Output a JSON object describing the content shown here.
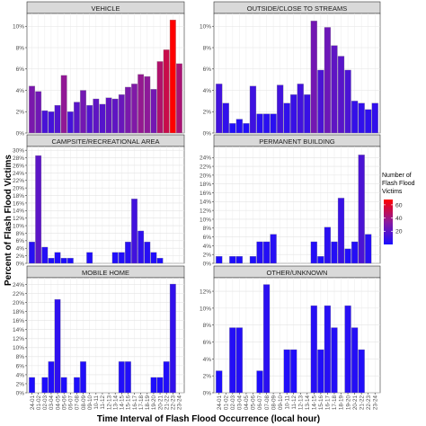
{
  "figure": {
    "ylabel": "Percent of Flash Flood Victims",
    "xlabel": "Time Interval of Flash Flood Occurrence (local hour)"
  },
  "legend": {
    "title_lines": [
      "Number of",
      "Flash Flood",
      "Victims"
    ],
    "ticks": [
      60,
      40,
      20
    ],
    "domain": [
      0,
      68
    ],
    "colors": {
      "low": "#1a0dff",
      "mid": "#8a1a9e",
      "high": "#ff0000"
    }
  },
  "x_categories": [
    "24-01",
    "01-02",
    "02-03",
    "03-04",
    "04-05",
    "05-06",
    "06-07",
    "07-08",
    "08-09",
    "09-10",
    "10-11",
    "11-12",
    "12-13",
    "13-14",
    "14-15",
    "15-16",
    "16-17",
    "17-18",
    "18-19",
    "19-20",
    "20-21",
    "21-22",
    "22-23",
    "23-24"
  ],
  "chart_data": [
    {
      "type": "bar",
      "title": "VEHICLE",
      "categories": [
        "24-01",
        "01-02",
        "02-03",
        "03-04",
        "04-05",
        "05-06",
        "06-07",
        "07-08",
        "08-09",
        "09-10",
        "10-11",
        "11-12",
        "12-13",
        "13-14",
        "14-15",
        "15-16",
        "16-17",
        "17-18",
        "18-19",
        "19-20",
        "20-21",
        "21-22",
        "22-23",
        "23-24"
      ],
      "values": [
        4.4,
        3.9,
        2.1,
        2.0,
        2.6,
        5.4,
        2.0,
        2.9,
        4.0,
        2.6,
        3.2,
        2.7,
        3.3,
        3.2,
        3.6,
        4.3,
        4.6,
        5.5,
        5.3,
        4.1,
        6.7,
        7.8,
        10.6,
        6.5
      ],
      "victims": [
        29,
        26,
        14,
        13,
        17,
        36,
        13,
        19,
        27,
        17,
        21,
        18,
        22,
        21,
        24,
        29,
        31,
        37,
        35,
        27,
        45,
        52,
        68,
        43
      ],
      "yticks": [
        0,
        2,
        4,
        6,
        8,
        10
      ],
      "ytick_labels": [
        "0%",
        "2%",
        "4%",
        "6%",
        "8%",
        "10%"
      ],
      "ylim": [
        0,
        11.2
      ]
    },
    {
      "type": "bar",
      "title": "OUTSIDE/CLOSE TO STREAMS",
      "categories": [
        "24-01",
        "01-02",
        "02-03",
        "03-04",
        "04-05",
        "05-06",
        "06-07",
        "07-08",
        "08-09",
        "09-10",
        "10-11",
        "11-12",
        "12-13",
        "13-14",
        "14-15",
        "15-16",
        "16-17",
        "17-18",
        "18-19",
        "19-20",
        "20-21",
        "21-22",
        "22-23",
        "23-24"
      ],
      "values": [
        4.6,
        2.8,
        0.9,
        1.3,
        0.9,
        4.4,
        1.8,
        1.8,
        1.8,
        4.5,
        2.8,
        3.6,
        4.6,
        3.6,
        10.5,
        5.9,
        9.9,
        8.2,
        7.2,
        5.9,
        3.0,
        2.8,
        2.2,
        2.8
      ],
      "victims": [
        12,
        7,
        2,
        3,
        2,
        11,
        5,
        5,
        5,
        12,
        7,
        9,
        12,
        9,
        27,
        15,
        25,
        21,
        19,
        15,
        8,
        7,
        6,
        7
      ],
      "yticks": [
        0,
        2,
        4,
        6,
        8,
        10
      ],
      "ytick_labels": [
        "0%",
        "2%",
        "4%",
        "6%",
        "8%",
        "10%"
      ],
      "ylim": [
        0,
        11.2
      ]
    },
    {
      "type": "bar",
      "title": "CAMPSITE/RECREATIONAL AREA",
      "categories": [
        "24-01",
        "01-02",
        "02-03",
        "03-04",
        "04-05",
        "05-06",
        "06-07",
        "07-08",
        "08-09",
        "09-10",
        "10-11",
        "11-12",
        "12-13",
        "13-14",
        "14-15",
        "15-16",
        "16-17",
        "17-18",
        "18-19",
        "19-20",
        "20-21",
        "21-22",
        "22-23",
        "23-24"
      ],
      "values": [
        5.7,
        28.6,
        4.3,
        1.4,
        2.9,
        1.4,
        1.4,
        0,
        0,
        2.9,
        0,
        0,
        0,
        2.9,
        2.9,
        5.7,
        17.1,
        8.6,
        5.7,
        2.9,
        1.4,
        0,
        0,
        0
      ],
      "victims": [
        4,
        20,
        3,
        1,
        2,
        1,
        1,
        0,
        0,
        2,
        0,
        0,
        0,
        2,
        2,
        4,
        12,
        6,
        4,
        2,
        1,
        0,
        0,
        0
      ],
      "yticks": [
        0,
        2,
        4,
        6,
        8,
        10,
        12,
        14,
        16,
        18,
        20,
        22,
        24,
        26,
        28,
        30
      ],
      "ytick_labels": [
        "0%",
        "2%",
        "4%",
        "6%",
        "8%",
        "10%",
        "12%",
        "14%",
        "16%",
        "18%",
        "20%",
        "22%",
        "24%",
        "26%",
        "28%",
        "30%"
      ],
      "ylim": [
        0,
        31
      ]
    },
    {
      "type": "bar",
      "title": "PERMANENT BUILDING",
      "categories": [
        "24-01",
        "01-02",
        "02-03",
        "03-04",
        "04-05",
        "05-06",
        "06-07",
        "07-08",
        "08-09",
        "09-10",
        "10-11",
        "11-12",
        "12-13",
        "13-14",
        "14-15",
        "15-16",
        "16-17",
        "17-18",
        "18-19",
        "19-20",
        "20-21",
        "21-22",
        "22-23",
        "23-24"
      ],
      "values": [
        1.6,
        0,
        1.6,
        1.6,
        0,
        1.6,
        4.9,
        4.9,
        6.6,
        0,
        0,
        0,
        0,
        0,
        4.9,
        1.6,
        8.2,
        4.9,
        14.8,
        3.3,
        4.9,
        24.6,
        6.6,
        0
      ],
      "victims": [
        1,
        0,
        1,
        1,
        0,
        1,
        3,
        3,
        4,
        0,
        0,
        0,
        0,
        0,
        3,
        1,
        5,
        3,
        9,
        2,
        3,
        15,
        4,
        0
      ],
      "yticks": [
        0,
        2,
        4,
        6,
        8,
        10,
        12,
        14,
        16,
        18,
        20,
        22,
        24
      ],
      "ytick_labels": [
        "0%",
        "2%",
        "4%",
        "6%",
        "8%",
        "10%",
        "12%",
        "14%",
        "16%",
        "18%",
        "20%",
        "22%",
        "24%"
      ],
      "ylim": [
        0,
        26.5
      ]
    },
    {
      "type": "bar",
      "title": "MOBILE HOME",
      "categories": [
        "24-01",
        "01-02",
        "02-03",
        "03-04",
        "04-05",
        "05-06",
        "06-07",
        "07-08",
        "08-09",
        "09-10",
        "10-11",
        "11-12",
        "12-13",
        "13-14",
        "14-15",
        "15-16",
        "16-17",
        "17-18",
        "18-19",
        "19-20",
        "20-21",
        "21-22",
        "22-23",
        "23-24"
      ],
      "values": [
        3.4,
        0,
        3.4,
        6.9,
        20.7,
        3.4,
        0,
        3.4,
        6.9,
        0,
        0,
        0,
        0,
        0,
        6.9,
        6.9,
        0,
        0,
        0,
        3.4,
        3.4,
        6.9,
        24.1,
        0
      ],
      "victims": [
        1,
        0,
        1,
        2,
        6,
        1,
        0,
        1,
        2,
        0,
        0,
        0,
        0,
        0,
        2,
        2,
        0,
        0,
        0,
        1,
        1,
        2,
        7,
        0
      ],
      "yticks": [
        0,
        2,
        4,
        6,
        8,
        10,
        12,
        14,
        16,
        18,
        20,
        22,
        24
      ],
      "ytick_labels": [
        "0%",
        "2%",
        "4%",
        "6%",
        "8%",
        "10%",
        "12%",
        "14%",
        "16%",
        "18%",
        "20%",
        "22%",
        "24%"
      ],
      "ylim": [
        0,
        25.5
      ]
    },
    {
      "type": "bar",
      "title": "OTHER/UNKNOWN",
      "categories": [
        "24-01",
        "01-02",
        "02-03",
        "03-04",
        "04-05",
        "05-06",
        "06-07",
        "07-08",
        "08-09",
        "09-10",
        "10-11",
        "11-12",
        "12-13",
        "13-14",
        "14-15",
        "15-16",
        "16-17",
        "17-18",
        "18-19",
        "19-20",
        "20-21",
        "21-22",
        "22-23",
        "23-24"
      ],
      "values": [
        2.6,
        0,
        7.7,
        7.7,
        0,
        0,
        2.6,
        12.8,
        0,
        0,
        5.1,
        5.1,
        0,
        0,
        10.3,
        5.1,
        10.3,
        7.7,
        0,
        10.3,
        7.7,
        5.1,
        0,
        0
      ],
      "victims": [
        1,
        0,
        3,
        3,
        0,
        0,
        1,
        5,
        0,
        0,
        2,
        2,
        0,
        0,
        4,
        2,
        4,
        3,
        0,
        4,
        3,
        2,
        0,
        0
      ],
      "yticks": [
        0,
        2,
        4,
        6,
        8,
        10,
        12
      ],
      "ytick_labels": [
        "0%",
        "2%",
        "4%",
        "6%",
        "8%",
        "10%",
        "12%"
      ],
      "ylim": [
        0,
        13.6
      ]
    }
  ]
}
